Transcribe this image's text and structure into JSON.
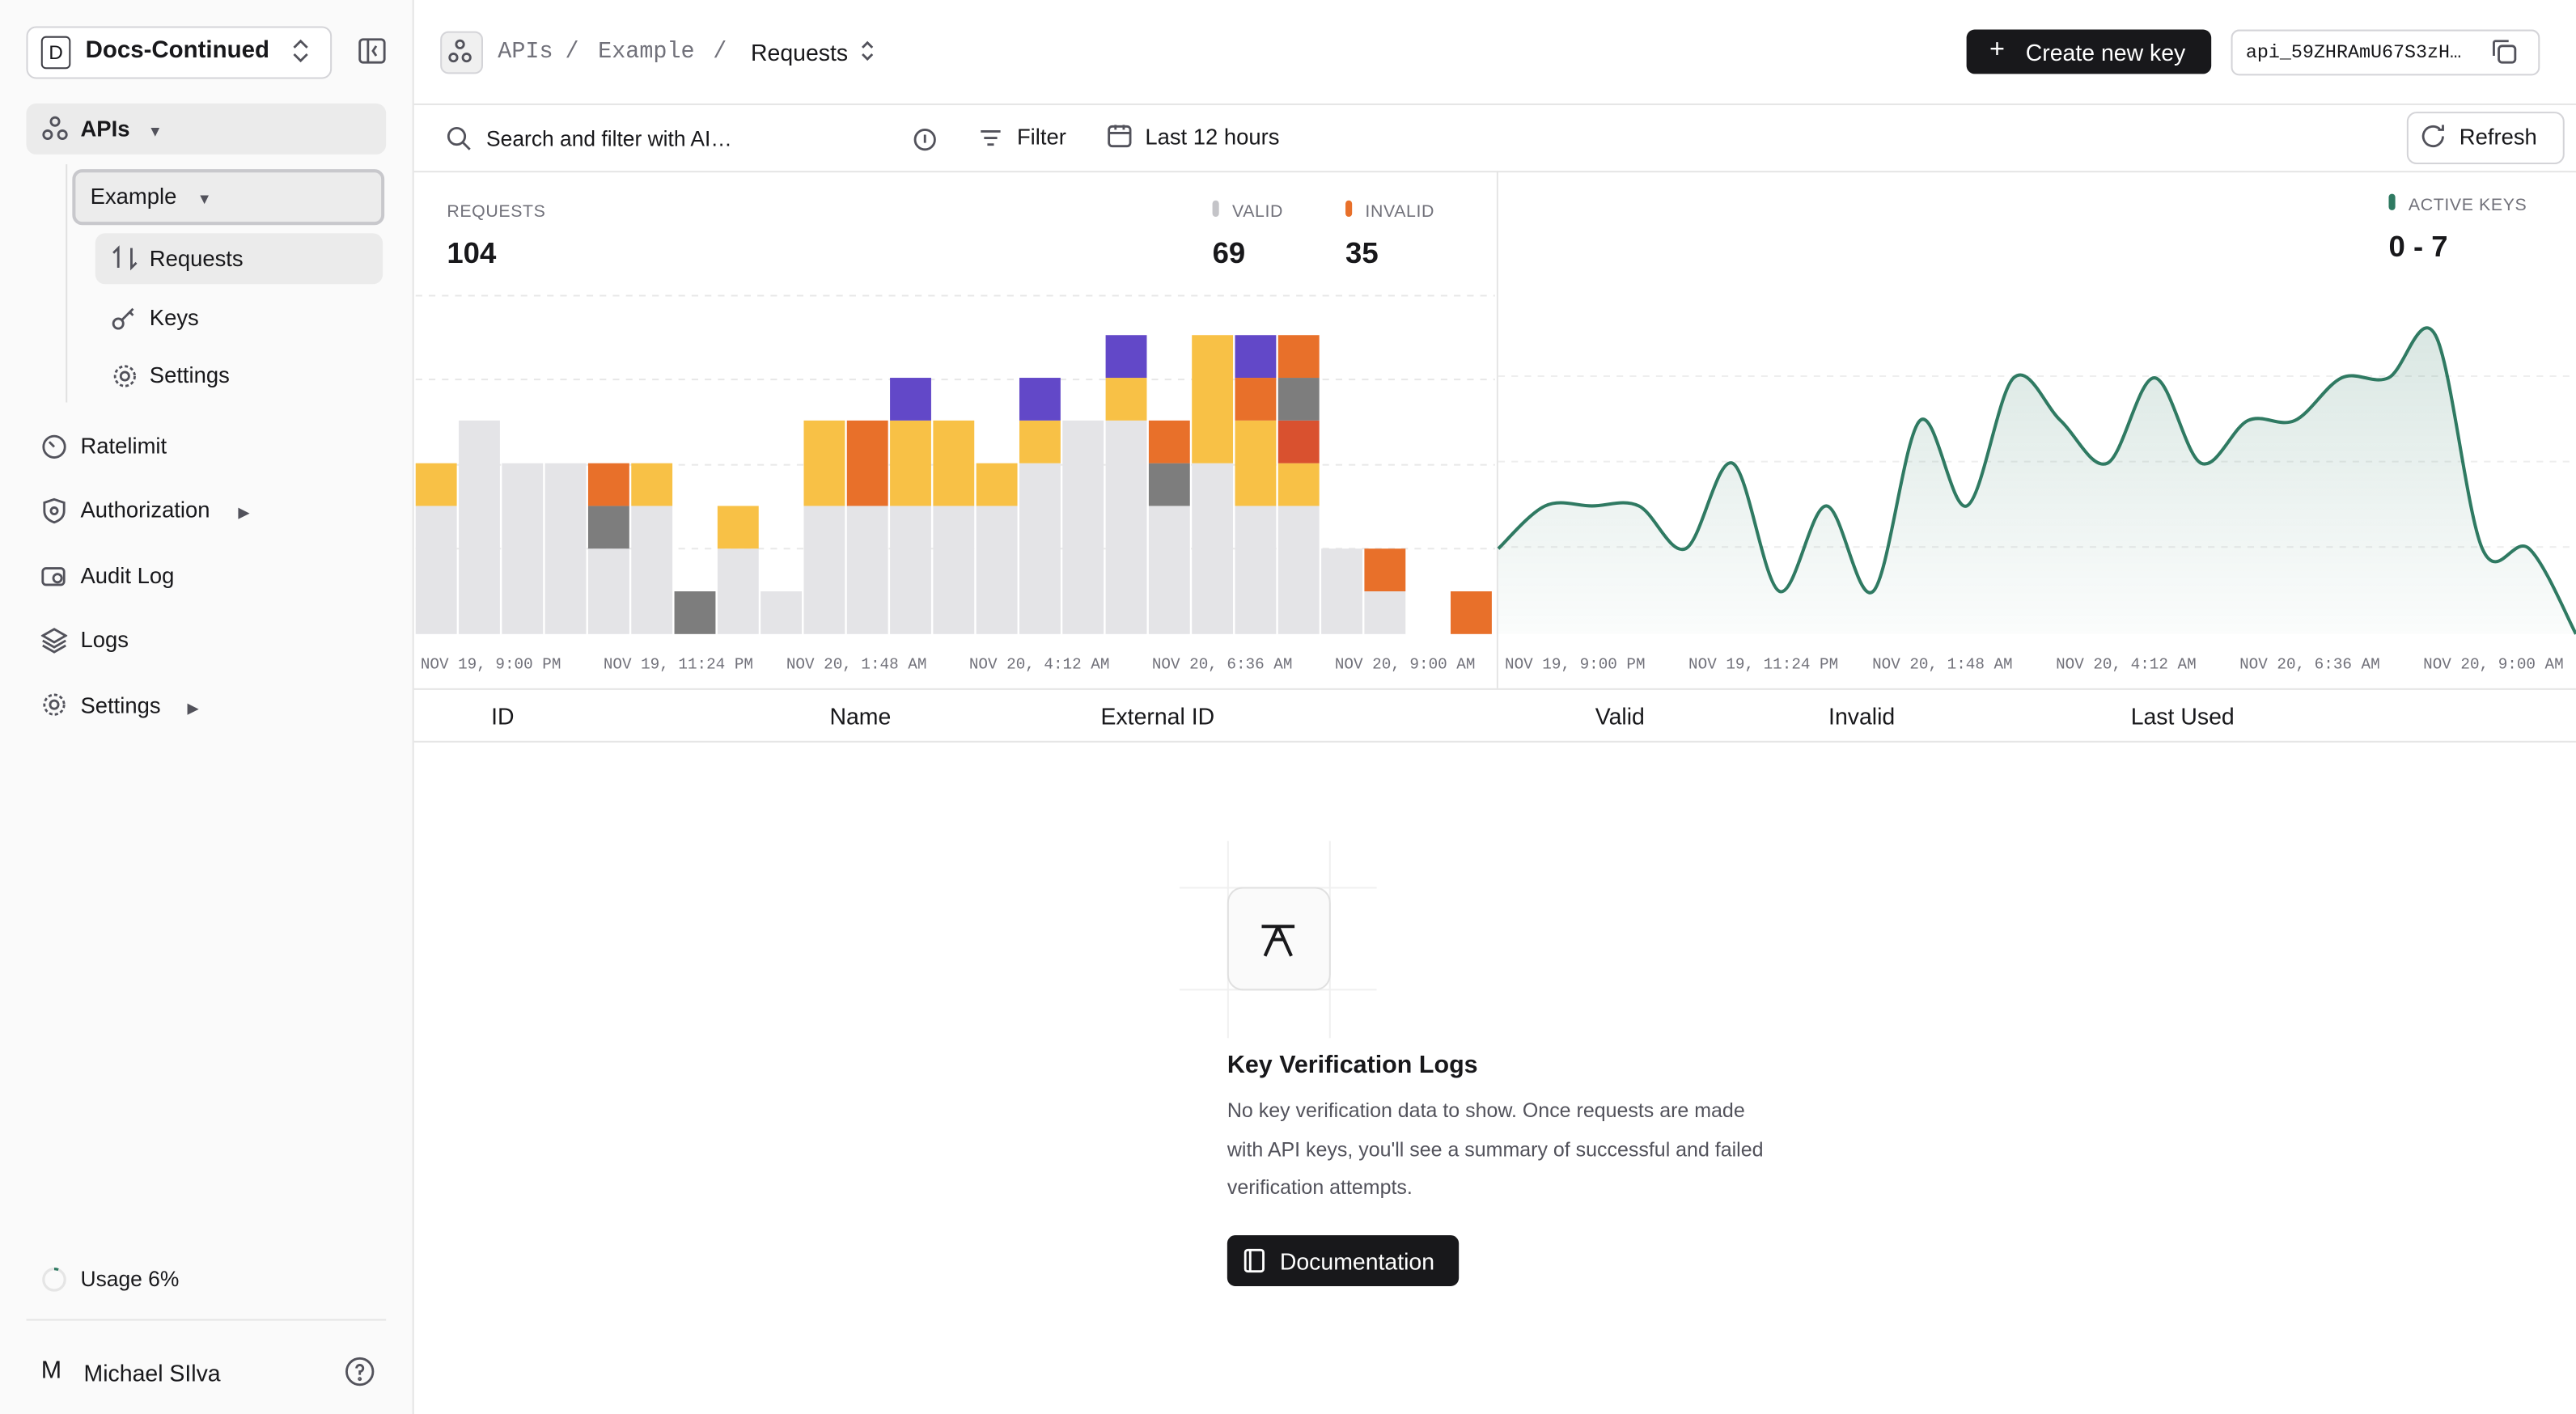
{
  "sidebar": {
    "workspace_initial": "D",
    "workspace": "Docs-Continued",
    "nav": [
      "APIs",
      "Example",
      "Requests",
      "Keys",
      "Settings",
      "Ratelimit",
      "Authorization",
      "Audit Log",
      "Logs",
      "Settings"
    ],
    "usage": "Usage 6%",
    "user_initial": "M",
    "user": "Michael SIlva"
  },
  "header": {
    "breadcrumb": [
      "APIs",
      "Example",
      "Requests"
    ],
    "separator": "/",
    "create_button": "Create new key",
    "api_key": "api_59ZHRAmU67S3zH…"
  },
  "filters": {
    "search": "Search and filter with AI…",
    "filter": "Filter",
    "time_range": "Last 12 hours",
    "refresh": "Refresh"
  },
  "chart_data": [
    {
      "type": "bar",
      "stacked": true,
      "title": "REQUESTS",
      "total": 104,
      "legend": [
        {
          "name": "VALID",
          "value": 69,
          "color": "#c4c4c8"
        },
        {
          "name": "INVALID",
          "value": 35,
          "color": "#e8702a"
        }
      ],
      "categories": [
        null,
        null,
        null,
        null,
        null,
        null,
        null,
        null,
        null,
        null,
        null,
        null,
        null,
        null,
        null,
        null,
        null,
        null,
        null,
        null,
        null,
        null,
        null,
        null,
        null
      ],
      "x_labels": [
        "NOV 19, 9:00 PM",
        "NOV 19, 11:24 PM",
        "NOV 20, 1:48 AM",
        "NOV 20, 4:12 AM",
        "NOV 20, 6:36 AM",
        "NOV 20, 9:00 AM"
      ],
      "series": [
        {
          "color": "#e4e4e7",
          "values": [
            3,
            5,
            4,
            4,
            2,
            3,
            0,
            2,
            1,
            3,
            3,
            3,
            3,
            3,
            4,
            5,
            5,
            3,
            4,
            3,
            3,
            2,
            1,
            0,
            0
          ]
        },
        {
          "color": "#f8c146",
          "values": [
            1,
            0,
            0,
            0,
            0,
            1,
            0,
            1,
            0,
            2,
            0,
            2,
            2,
            1,
            1,
            0,
            1,
            0,
            3,
            2,
            1,
            0,
            0,
            0,
            0
          ]
        },
        {
          "color": "#d9512f",
          "values": [
            0,
            0,
            0,
            0,
            0,
            0,
            0,
            0,
            0,
            0,
            0,
            0,
            0,
            0,
            0,
            0,
            0,
            0,
            0,
            0,
            1,
            0,
            0,
            0,
            0
          ]
        },
        {
          "color": "#7d7d7d",
          "values": [
            0,
            0,
            0,
            0,
            1,
            0,
            1,
            0,
            0,
            0,
            0,
            0,
            0,
            0,
            0,
            0,
            0,
            1,
            0,
            0,
            1,
            0,
            0,
            0,
            0
          ]
        },
        {
          "color": "#e8702a",
          "values": [
            0,
            0,
            0,
            0,
            1,
            0,
            0,
            0,
            0,
            0,
            2,
            0,
            0,
            0,
            0,
            0,
            0,
            1,
            0,
            1,
            1,
            0,
            1,
            0,
            1
          ]
        },
        {
          "color": "#6248c8",
          "values": [
            0,
            0,
            0,
            0,
            0,
            0,
            0,
            0,
            0,
            0,
            0,
            1,
            0,
            0,
            1,
            0,
            1,
            0,
            0,
            1,
            0,
            0,
            0,
            0,
            0
          ]
        }
      ],
      "ylim": [
        0,
        8
      ],
      "grid": true
    },
    {
      "type": "area",
      "title": "ACTIVE KEYS",
      "range_label": "0 - 7",
      "color": "#2f7a62",
      "categories": [
        null,
        null,
        null,
        null,
        null,
        null,
        null,
        null,
        null,
        null,
        null,
        null,
        null,
        null,
        null,
        null,
        null,
        null,
        null,
        null,
        null,
        null,
        null,
        null
      ],
      "x_labels": [
        "NOV 19, 9:00 PM",
        "NOV 19, 11:24 PM",
        "NOV 20, 1:48 AM",
        "NOV 20, 4:12 AM",
        "NOV 20, 6:36 AM",
        "NOV 20, 9:00 AM"
      ],
      "values": [
        2,
        3,
        3,
        3,
        2,
        4,
        1,
        3,
        1,
        5,
        3,
        6,
        5,
        4,
        6,
        4,
        5,
        5,
        6,
        6,
        7,
        2,
        2,
        0
      ],
      "ylim": [
        0,
        8
      ],
      "grid": true
    }
  ],
  "table": {
    "columns": [
      "ID",
      "Name",
      "External ID",
      "Valid",
      "Invalid",
      "Last Used"
    ]
  },
  "empty_state": {
    "title": "Key Verification Logs",
    "text": "No key verification data to show. Once requests are made with API keys, you'll see a summary of successful and failed verification attempts.",
    "button": "Documentation"
  }
}
